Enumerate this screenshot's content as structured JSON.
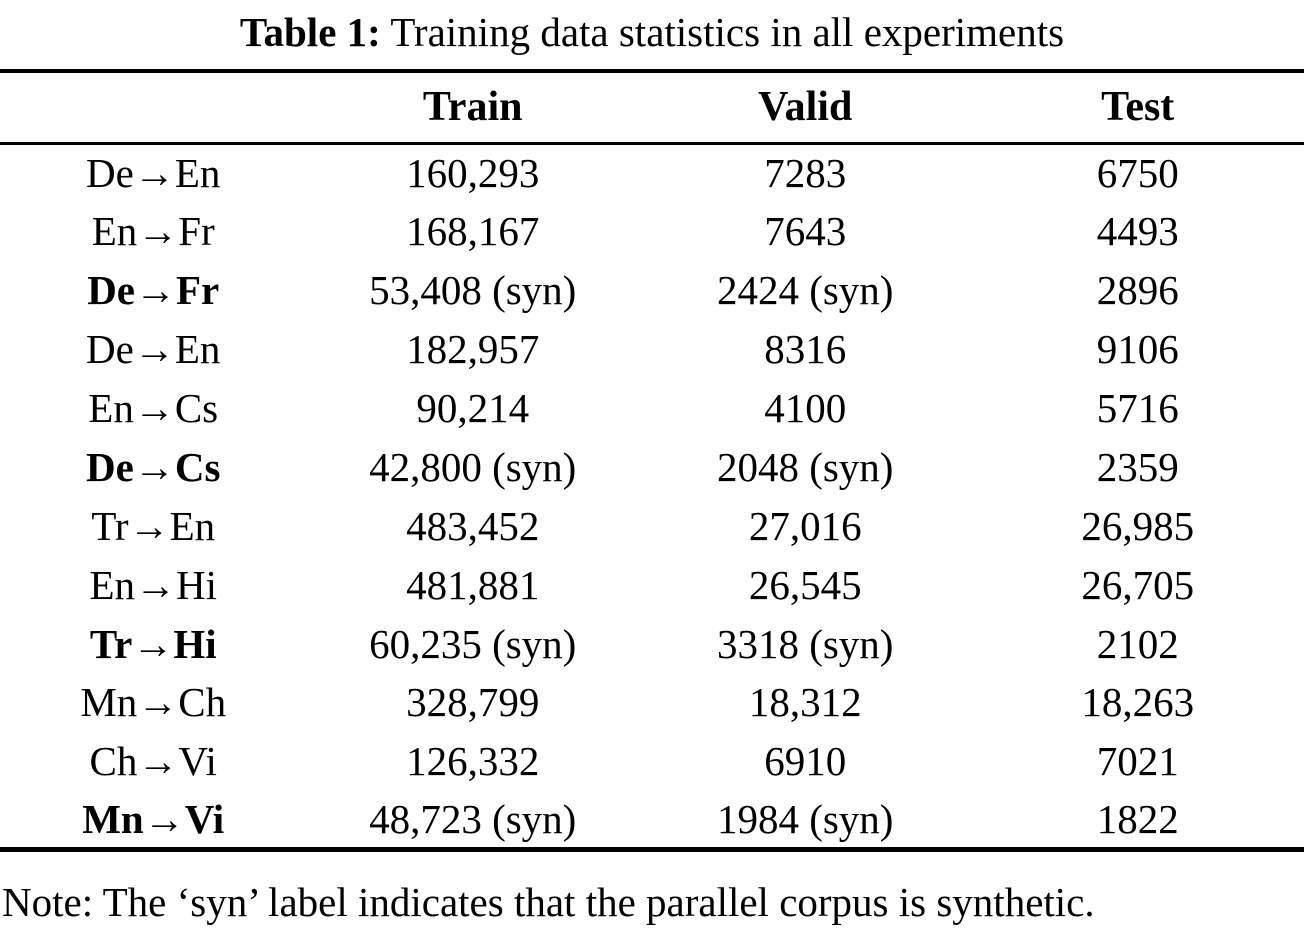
{
  "title": {
    "label": "Table 1:",
    "text": "Training data statistics in all experiments"
  },
  "table": {
    "columns": {
      "pair": "",
      "train": "Train",
      "valid": "Valid",
      "test": "Test"
    },
    "rows": [
      {
        "pair": "De→En",
        "bold": false,
        "train": "160,293",
        "valid": "7283",
        "test": "6750"
      },
      {
        "pair": "En→Fr",
        "bold": false,
        "train": "168,167",
        "valid": "7643",
        "test": "4493"
      },
      {
        "pair": "De→Fr",
        "bold": true,
        "train": "53,408 (syn)",
        "valid": "2424 (syn)",
        "test": "2896"
      },
      {
        "pair": "De→En",
        "bold": false,
        "train": "182,957",
        "valid": "8316",
        "test": "9106"
      },
      {
        "pair": "En→Cs",
        "bold": false,
        "train": "90,214",
        "valid": "4100",
        "test": "5716"
      },
      {
        "pair": "De→Cs",
        "bold": true,
        "train": "42,800 (syn)",
        "valid": "2048 (syn)",
        "test": "2359"
      },
      {
        "pair": "Tr→En",
        "bold": false,
        "train": "483,452",
        "valid": "27,016",
        "test": "26,985"
      },
      {
        "pair": "En→Hi",
        "bold": false,
        "train": "481,881",
        "valid": "26,545",
        "test": "26,705"
      },
      {
        "pair": "Tr→Hi",
        "bold": true,
        "train": "60,235 (syn)",
        "valid": "3318 (syn)",
        "test": "2102"
      },
      {
        "pair": "Mn→Ch",
        "bold": false,
        "train": "328,799",
        "valid": "18,312",
        "test": "18,263"
      },
      {
        "pair": "Ch→Vi",
        "bold": false,
        "train": "126,332",
        "valid": "6910",
        "test": "7021"
      },
      {
        "pair": "Mn→Vi",
        "bold": true,
        "train": "48,723 (syn)",
        "valid": "1984 (syn)",
        "test": "1822"
      }
    ]
  },
  "note": "Note: The ‘syn’ label indicates that the parallel corpus is synthetic."
}
